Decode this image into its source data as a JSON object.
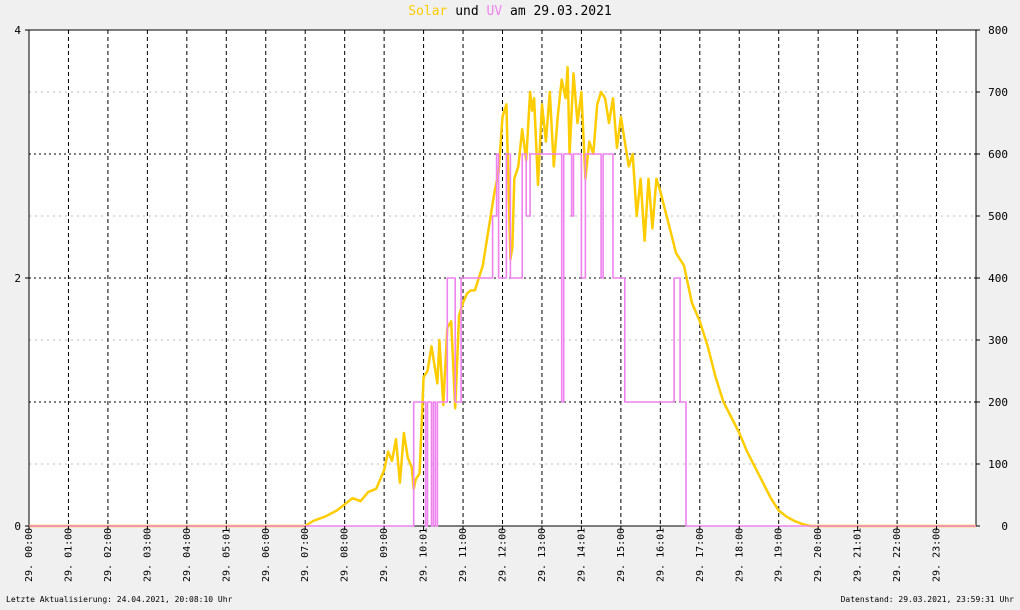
{
  "title": {
    "part1": "Solar",
    "part2": " und ",
    "part3": "UV",
    "part4": " am 29.03.2021",
    "color_solar": "#ffcc00",
    "color_uv": "#ee82ee"
  },
  "footer": {
    "left": "Letzte Aktualisierung: 24.04.2021, 20:08:10 Uhr",
    "right": "Datenstand: 29.03.2021, 23:59:31 Uhr"
  },
  "chart_data": {
    "type": "line",
    "x_unit": "hours",
    "xlim": [
      0,
      24
    ],
    "x_ticks": [
      "29. 00:00",
      "29. 01:00",
      "29. 02:00",
      "29. 03:00",
      "29. 04:00",
      "29. 05:01",
      "29. 06:00",
      "29. 07:00",
      "29. 08:00",
      "29. 09:00",
      "29. 10:01",
      "29. 11:00",
      "29. 12:00",
      "29. 13:00",
      "29. 14:01",
      "29. 15:00",
      "29. 16:01",
      "29. 17:00",
      "29. 18:00",
      "29. 19:00",
      "29. 20:00",
      "29. 21:01",
      "29. 22:00",
      "29. 23:00"
    ],
    "left_axis": {
      "ylim": [
        0,
        4
      ],
      "ticks": [
        "0",
        "2",
        "4"
      ]
    },
    "right_axis": {
      "ylim": [
        0,
        800
      ],
      "ticks": [
        "0",
        "100",
        "200",
        "300",
        "400",
        "500",
        "600",
        "700",
        "800"
      ]
    },
    "grid": true,
    "series": [
      {
        "name": "Solar",
        "axis": "right",
        "color": "#ffcc00",
        "x": [
          0,
          7.0,
          7.2,
          7.5,
          7.8,
          8.0,
          8.2,
          8.4,
          8.6,
          8.8,
          9.0,
          9.1,
          9.2,
          9.3,
          9.4,
          9.5,
          9.6,
          9.7,
          9.75,
          9.8,
          9.9,
          10.0,
          10.1,
          10.15,
          10.2,
          10.3,
          10.35,
          10.4,
          10.5,
          10.6,
          10.7,
          10.8,
          10.9,
          11.0,
          11.1,
          11.2,
          11.3,
          11.4,
          11.5,
          11.6,
          11.7,
          11.8,
          11.9,
          12.0,
          12.1,
          12.2,
          12.25,
          12.3,
          12.4,
          12.5,
          12.6,
          12.7,
          12.75,
          12.8,
          12.9,
          13.0,
          13.1,
          13.2,
          13.3,
          13.4,
          13.5,
          13.6,
          13.65,
          13.7,
          13.8,
          13.9,
          14.0,
          14.1,
          14.2,
          14.3,
          14.4,
          14.5,
          14.6,
          14.7,
          14.8,
          14.9,
          15.0,
          15.1,
          15.2,
          15.3,
          15.4,
          15.5,
          15.6,
          15.7,
          15.8,
          15.9,
          16.0,
          16.2,
          16.4,
          16.6,
          16.8,
          17.0,
          17.2,
          17.4,
          17.6,
          17.8,
          18.0,
          18.2,
          18.4,
          18.6,
          18.8,
          19.0,
          19.2,
          19.4,
          19.6,
          19.8,
          20.0,
          24
        ],
        "y": [
          0,
          0,
          8,
          15,
          25,
          35,
          45,
          40,
          55,
          60,
          90,
          120,
          105,
          140,
          70,
          150,
          110,
          95,
          60,
          75,
          85,
          240,
          250,
          270,
          290,
          250,
          230,
          300,
          195,
          320,
          330,
          190,
          340,
          360,
          375,
          380,
          380,
          400,
          420,
          460,
          500,
          540,
          570,
          660,
          680,
          430,
          450,
          560,
          580,
          640,
          590,
          700,
          670,
          690,
          550,
          680,
          620,
          700,
          580,
          660,
          720,
          690,
          740,
          600,
          730,
          650,
          700,
          560,
          620,
          600,
          680,
          700,
          690,
          650,
          690,
          610,
          660,
          620,
          580,
          600,
          500,
          560,
          460,
          560,
          480,
          560,
          540,
          490,
          440,
          420,
          360,
          330,
          290,
          240,
          200,
          175,
          150,
          120,
          95,
          70,
          45,
          25,
          15,
          8,
          3,
          0,
          0,
          0
        ]
      },
      {
        "name": "UV",
        "axis": "left",
        "color": "#ee82ee",
        "x": [
          0,
          9.75,
          9.75,
          10.05,
          10.05,
          10.1,
          10.1,
          10.2,
          10.2,
          10.25,
          10.25,
          10.3,
          10.3,
          10.35,
          10.35,
          10.6,
          10.6,
          10.8,
          10.8,
          10.95,
          10.95,
          11.75,
          11.75,
          11.85,
          11.85,
          11.9,
          11.9,
          12.1,
          12.1,
          12.2,
          12.2,
          12.5,
          12.5,
          12.6,
          12.6,
          12.7,
          12.7,
          13.5,
          13.5,
          13.55,
          13.55,
          13.75,
          13.75,
          13.8,
          13.8,
          14.0,
          14.0,
          14.1,
          14.1,
          14.5,
          14.5,
          14.55,
          14.55,
          14.8,
          14.8,
          15.1,
          15.1,
          16.35,
          16.35,
          16.5,
          16.5,
          16.65,
          16.65,
          17.85,
          17.85,
          24
        ],
        "y": [
          0,
          0,
          1,
          1,
          0,
          0,
          1,
          1,
          0,
          0,
          1,
          1,
          0,
          0,
          1,
          1,
          2,
          2,
          1,
          1,
          2,
          2,
          2.5,
          2.5,
          3,
          3,
          2,
          2,
          3,
          3,
          2,
          2,
          3,
          3,
          2.5,
          2.5,
          3,
          3,
          1,
          1,
          3,
          3,
          2.5,
          2.5,
          3,
          3,
          2,
          2,
          3,
          3,
          2,
          2,
          3,
          3,
          2,
          2,
          1,
          1,
          2,
          2,
          1,
          1,
          0,
          0,
          0,
          0
        ]
      }
    ]
  }
}
